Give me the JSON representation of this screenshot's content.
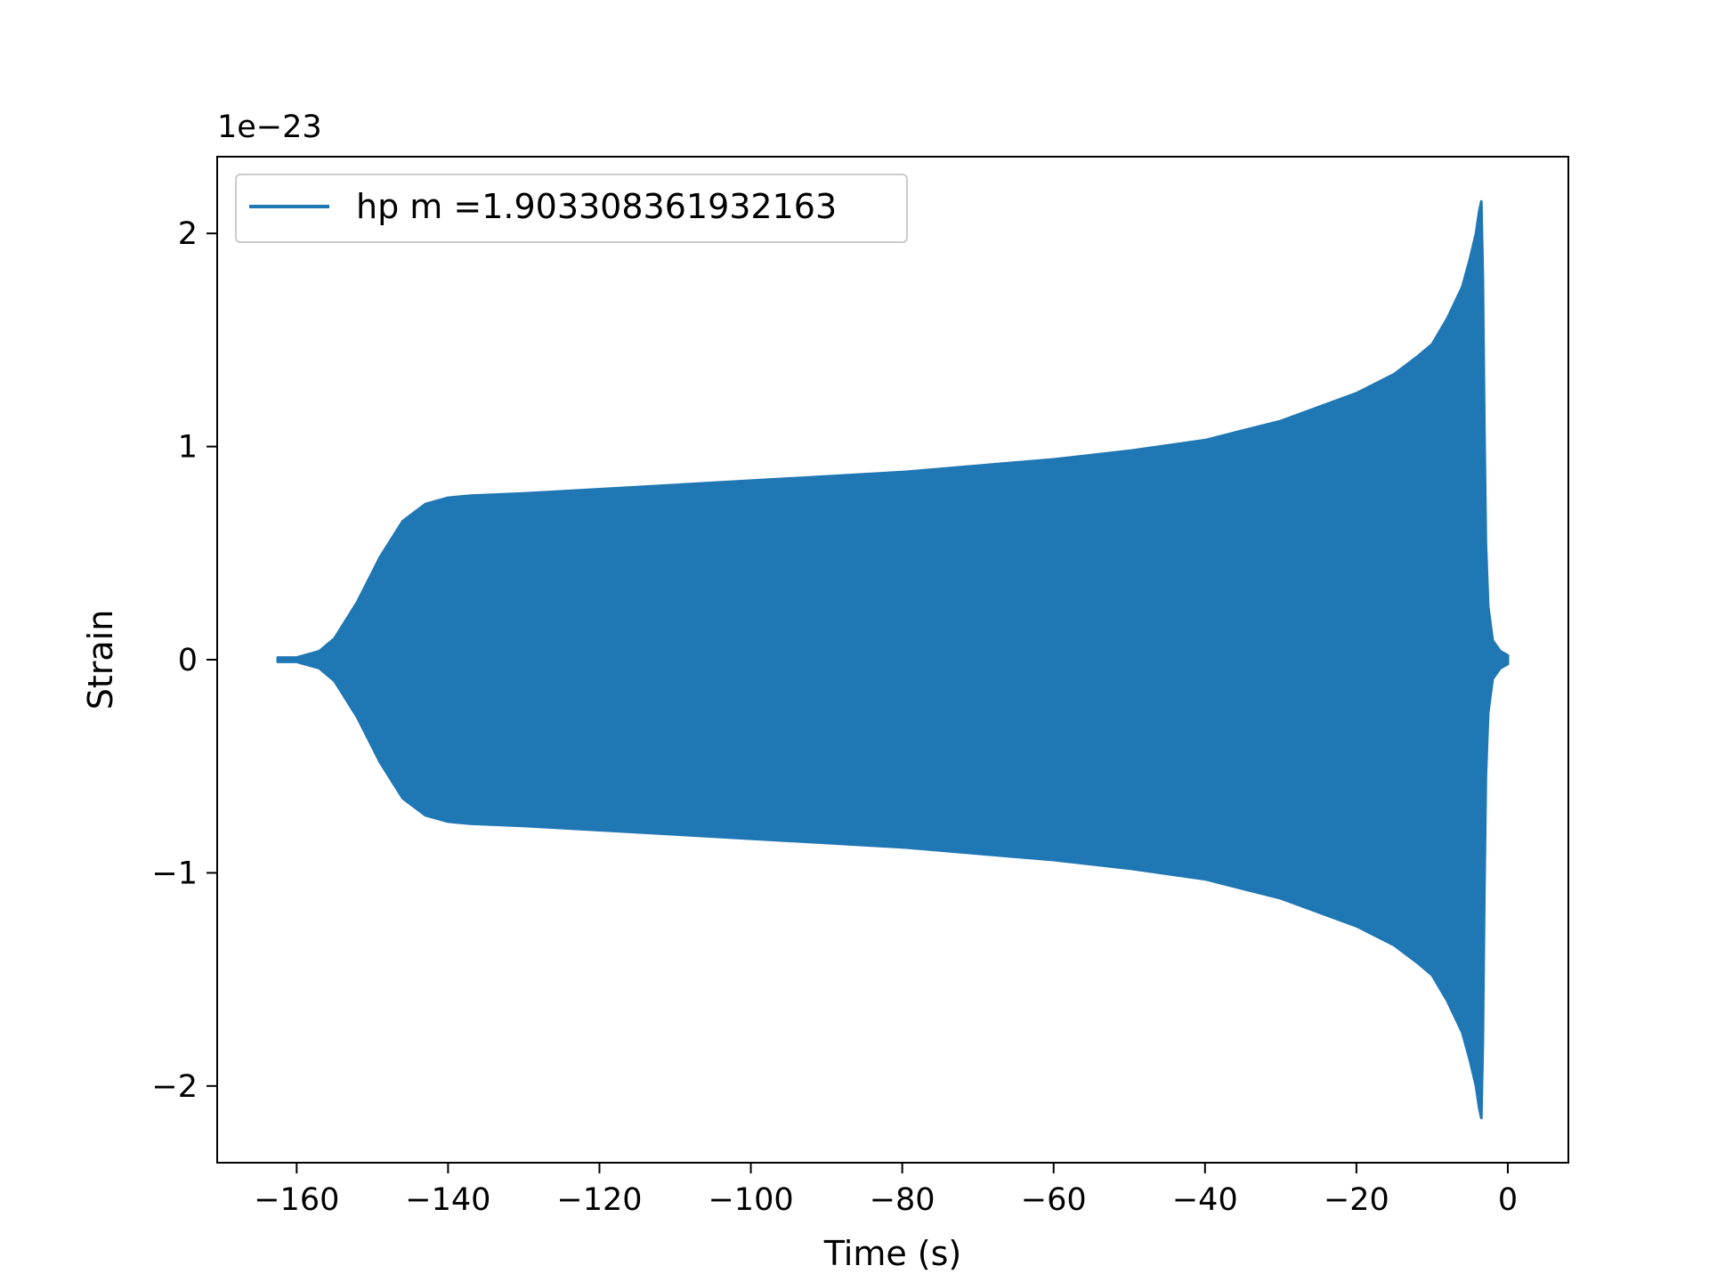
{
  "chart_data": {
    "type": "line",
    "xlabel": "Time (s)",
    "ylabel": "Strain",
    "offset_label": "1e−23",
    "y_scale_factor": 1e-23,
    "xlim": [
      -170.5,
      8.0
    ],
    "ylim": [
      -2.36,
      2.36
    ],
    "x_ticks": [
      -160,
      -140,
      -120,
      -100,
      -80,
      -60,
      -40,
      -20,
      0
    ],
    "x_tick_labels": [
      "−160",
      "−140",
      "−120",
      "−100",
      "−80",
      "−60",
      "−40",
      "−20",
      "0"
    ],
    "y_ticks": [
      -2,
      -1,
      0,
      1,
      2
    ],
    "y_tick_labels": [
      "−2",
      "−1",
      "0",
      "1",
      "2"
    ],
    "grid": false,
    "legend_position": "upper left",
    "series": [
      {
        "name": "hp m =1.903308361932163",
        "color": "#1f77b4",
        "envelope_upper": [
          [
            -162.5,
            0.01
          ],
          [
            -160,
            0.01
          ],
          [
            -157,
            0.04
          ],
          [
            -155,
            0.1
          ],
          [
            -152,
            0.27
          ],
          [
            -149,
            0.48
          ],
          [
            -146,
            0.65
          ],
          [
            -143,
            0.73
          ],
          [
            -140,
            0.76
          ],
          [
            -137,
            0.77
          ],
          [
            -130,
            0.78
          ],
          [
            -120,
            0.8
          ],
          [
            -110,
            0.82
          ],
          [
            -100,
            0.84
          ],
          [
            -90,
            0.86
          ],
          [
            -80,
            0.88
          ],
          [
            -70,
            0.91
          ],
          [
            -60,
            0.94
          ],
          [
            -50,
            0.98
          ],
          [
            -40,
            1.03
          ],
          [
            -30,
            1.12
          ],
          [
            -20,
            1.25
          ],
          [
            -15,
            1.34
          ],
          [
            -12,
            1.42
          ],
          [
            -10,
            1.48
          ],
          [
            -8,
            1.6
          ],
          [
            -6,
            1.75
          ],
          [
            -5,
            1.88
          ],
          [
            -4.2,
            2.0
          ],
          [
            -3.8,
            2.1
          ],
          [
            -3.5,
            2.15
          ],
          [
            -3.3,
            1.8
          ],
          [
            -3.1,
            1.1
          ],
          [
            -2.9,
            0.55
          ],
          [
            -2.6,
            0.25
          ],
          [
            -2,
            0.09
          ],
          [
            -1,
            0.04
          ],
          [
            0,
            0.02
          ]
        ],
        "envelope_lower": [
          [
            -162.5,
            -0.01
          ],
          [
            -160,
            -0.01
          ],
          [
            -157,
            -0.04
          ],
          [
            -155,
            -0.1
          ],
          [
            -152,
            -0.27
          ],
          [
            -149,
            -0.48
          ],
          [
            -146,
            -0.65
          ],
          [
            -143,
            -0.73
          ],
          [
            -140,
            -0.76
          ],
          [
            -137,
            -0.77
          ],
          [
            -130,
            -0.78
          ],
          [
            -120,
            -0.8
          ],
          [
            -110,
            -0.82
          ],
          [
            -100,
            -0.84
          ],
          [
            -90,
            -0.86
          ],
          [
            -80,
            -0.88
          ],
          [
            -70,
            -0.91
          ],
          [
            -60,
            -0.94
          ],
          [
            -50,
            -0.98
          ],
          [
            -40,
            -1.03
          ],
          [
            -30,
            -1.12
          ],
          [
            -20,
            -1.25
          ],
          [
            -15,
            -1.34
          ],
          [
            -12,
            -1.42
          ],
          [
            -10,
            -1.48
          ],
          [
            -8,
            -1.6
          ],
          [
            -6,
            -1.75
          ],
          [
            -5,
            -1.88
          ],
          [
            -4.2,
            -2.0
          ],
          [
            -3.8,
            -2.1
          ],
          [
            -3.5,
            -2.15
          ],
          [
            -3.3,
            -1.8
          ],
          [
            -3.1,
            -1.1
          ],
          [
            -2.9,
            -0.55
          ],
          [
            -2.6,
            -0.25
          ],
          [
            -2,
            -0.09
          ],
          [
            -1,
            -0.04
          ],
          [
            0,
            -0.02
          ]
        ]
      }
    ]
  }
}
